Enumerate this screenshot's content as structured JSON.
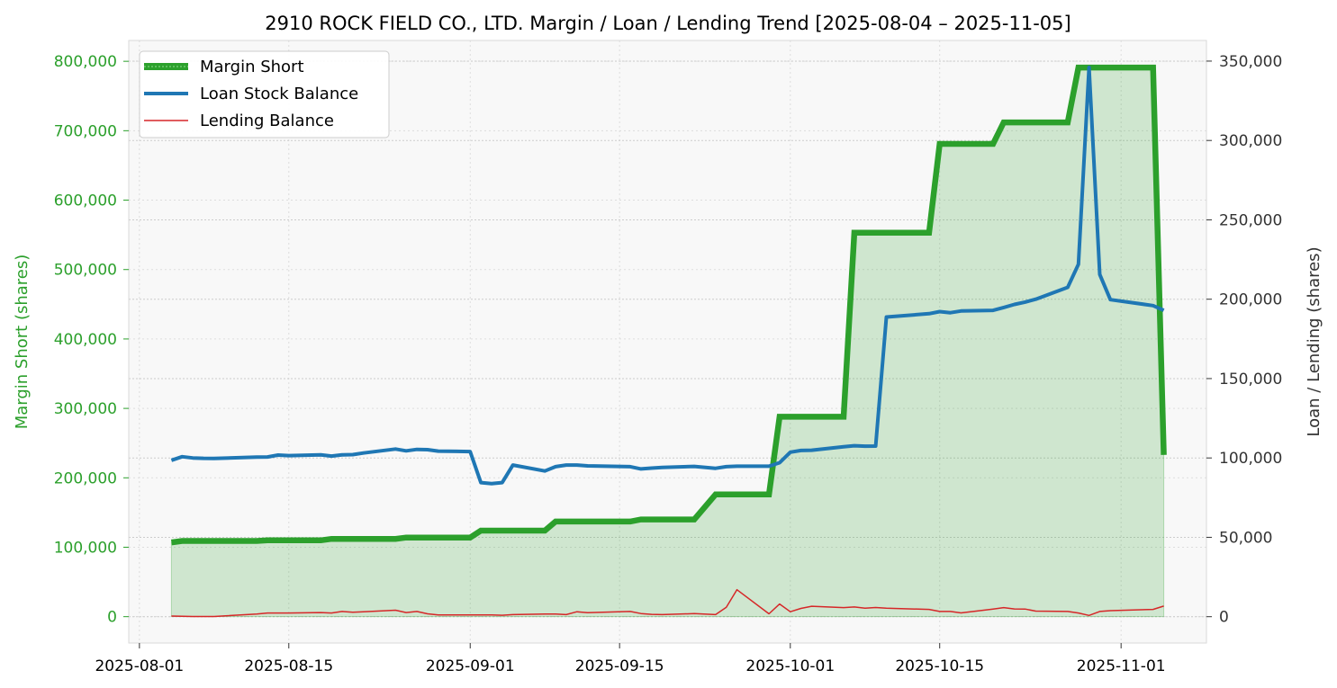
{
  "chart_data": {
    "type": "line",
    "title": "2910 ROCK FIELD CO., LTD. Margin / Loan / Lending Trend [2025-08-04 – 2025-11-05]",
    "xlabel": "",
    "ylabel_left": "Margin Short (shares)",
    "ylabel_right": "Loan / Lending (shares)",
    "x_range": [
      "2025-07-31",
      "2025-11-09"
    ],
    "ylim_left": [
      -38000,
      830000
    ],
    "ylim_right": [
      -16600,
      363000
    ],
    "x_ticks": [
      {
        "date": "2025-08-01",
        "label": "2025-08-01"
      },
      {
        "date": "2025-08-15",
        "label": "2025-08-15"
      },
      {
        "date": "2025-09-01",
        "label": "2025-09-01"
      },
      {
        "date": "2025-09-15",
        "label": "2025-09-15"
      },
      {
        "date": "2025-10-01",
        "label": "2025-10-01"
      },
      {
        "date": "2025-10-15",
        "label": "2025-10-15"
      },
      {
        "date": "2025-11-01",
        "label": "2025-11-01"
      }
    ],
    "y_ticks_left": [
      {
        "value": 0,
        "label": "0"
      },
      {
        "value": 100000,
        "label": "100,000"
      },
      {
        "value": 200000,
        "label": "200,000"
      },
      {
        "value": 300000,
        "label": "300,000"
      },
      {
        "value": 400000,
        "label": "400,000"
      },
      {
        "value": 500000,
        "label": "500,000"
      },
      {
        "value": 600000,
        "label": "600,000"
      },
      {
        "value": 700000,
        "label": "700,000"
      },
      {
        "value": 800000,
        "label": "800,000"
      }
    ],
    "y_ticks_right": [
      {
        "value": 0,
        "label": "0"
      },
      {
        "value": 50000,
        "label": "50,000"
      },
      {
        "value": 100000,
        "label": "100,000"
      },
      {
        "value": 150000,
        "label": "150,000"
      },
      {
        "value": 200000,
        "label": "200,000"
      },
      {
        "value": 250000,
        "label": "250,000"
      },
      {
        "value": 300000,
        "label": "300,000"
      },
      {
        "value": 350000,
        "label": "350,000"
      }
    ],
    "grid": true,
    "legend_position": "top-left",
    "series": [
      {
        "name": "Margin Short",
        "axis": "left",
        "color": "#2ca02c",
        "style": "thick-fill",
        "points": [
          [
            "2025-08-04",
            107000
          ],
          [
            "2025-08-05",
            109000
          ],
          [
            "2025-08-06",
            109000
          ],
          [
            "2025-08-07",
            109000
          ],
          [
            "2025-08-08",
            109000
          ],
          [
            "2025-08-12",
            109000
          ],
          [
            "2025-08-13",
            110000
          ],
          [
            "2025-08-14",
            110000
          ],
          [
            "2025-08-15",
            110000
          ],
          [
            "2025-08-18",
            110000
          ],
          [
            "2025-08-19",
            112000
          ],
          [
            "2025-08-20",
            112000
          ],
          [
            "2025-08-21",
            112000
          ],
          [
            "2025-08-22",
            112000
          ],
          [
            "2025-08-25",
            112000
          ],
          [
            "2025-08-26",
            114000
          ],
          [
            "2025-08-27",
            114000
          ],
          [
            "2025-08-28",
            114000
          ],
          [
            "2025-08-29",
            114000
          ],
          [
            "2025-09-01",
            114000
          ],
          [
            "2025-09-02",
            124000
          ],
          [
            "2025-09-03",
            124000
          ],
          [
            "2025-09-04",
            124000
          ],
          [
            "2025-09-05",
            124000
          ],
          [
            "2025-09-08",
            124000
          ],
          [
            "2025-09-09",
            137000
          ],
          [
            "2025-09-10",
            137000
          ],
          [
            "2025-09-11",
            137000
          ],
          [
            "2025-09-12",
            137000
          ],
          [
            "2025-09-16",
            137000
          ],
          [
            "2025-09-17",
            140000
          ],
          [
            "2025-09-18",
            140000
          ],
          [
            "2025-09-19",
            140000
          ],
          [
            "2025-09-22",
            140000
          ],
          [
            "2025-09-24",
            176000
          ],
          [
            "2025-09-25",
            176000
          ],
          [
            "2025-09-26",
            176000
          ],
          [
            "2025-09-29",
            176000
          ],
          [
            "2025-09-30",
            288000
          ],
          [
            "2025-10-01",
            288000
          ],
          [
            "2025-10-02",
            288000
          ],
          [
            "2025-10-03",
            288000
          ],
          [
            "2025-10-06",
            288000
          ],
          [
            "2025-10-07",
            553000
          ],
          [
            "2025-10-08",
            553000
          ],
          [
            "2025-10-09",
            553000
          ],
          [
            "2025-10-10",
            553000
          ],
          [
            "2025-10-14",
            553000
          ],
          [
            "2025-10-15",
            681000
          ],
          [
            "2025-10-16",
            681000
          ],
          [
            "2025-10-17",
            681000
          ],
          [
            "2025-10-20",
            681000
          ],
          [
            "2025-10-21",
            712000
          ],
          [
            "2025-10-22",
            712000
          ],
          [
            "2025-10-23",
            712000
          ],
          [
            "2025-10-24",
            712000
          ],
          [
            "2025-10-27",
            712000
          ],
          [
            "2025-10-28",
            791000
          ],
          [
            "2025-10-29",
            791000
          ],
          [
            "2025-10-30",
            791000
          ],
          [
            "2025-10-31",
            791000
          ],
          [
            "2025-11-04",
            791000
          ],
          [
            "2025-11-05",
            233000
          ]
        ]
      },
      {
        "name": "Loan Stock Balance",
        "axis": "right",
        "color": "#1f77b4",
        "style": "line",
        "points": [
          [
            "2025-08-04",
            98500
          ],
          [
            "2025-08-05",
            100800
          ],
          [
            "2025-08-06",
            100000
          ],
          [
            "2025-08-07",
            99800
          ],
          [
            "2025-08-08",
            99700
          ],
          [
            "2025-08-12",
            100500
          ],
          [
            "2025-08-13",
            100600
          ],
          [
            "2025-08-14",
            101800
          ],
          [
            "2025-08-15",
            101500
          ],
          [
            "2025-08-18",
            101900
          ],
          [
            "2025-08-19",
            101200
          ],
          [
            "2025-08-20",
            101900
          ],
          [
            "2025-08-21",
            102100
          ],
          [
            "2025-08-22",
            103100
          ],
          [
            "2025-08-25",
            105600
          ],
          [
            "2025-08-26",
            104500
          ],
          [
            "2025-08-27",
            105400
          ],
          [
            "2025-08-28",
            105200
          ],
          [
            "2025-08-29",
            104300
          ],
          [
            "2025-09-01",
            104000
          ],
          [
            "2025-09-02",
            84500
          ],
          [
            "2025-09-03",
            83800
          ],
          [
            "2025-09-04",
            84500
          ],
          [
            "2025-09-05",
            95500
          ],
          [
            "2025-09-08",
            91800
          ],
          [
            "2025-09-09",
            94500
          ],
          [
            "2025-09-10",
            95500
          ],
          [
            "2025-09-11",
            95500
          ],
          [
            "2025-09-12",
            95000
          ],
          [
            "2025-09-16",
            94500
          ],
          [
            "2025-09-17",
            93100
          ],
          [
            "2025-09-18",
            93600
          ],
          [
            "2025-09-19",
            94000
          ],
          [
            "2025-09-22",
            94700
          ],
          [
            "2025-09-24",
            93500
          ],
          [
            "2025-09-25",
            94500
          ],
          [
            "2025-09-26",
            94800
          ],
          [
            "2025-09-29",
            94800
          ],
          [
            "2025-09-30",
            97000
          ],
          [
            "2025-10-01",
            103600
          ],
          [
            "2025-10-02",
            104700
          ],
          [
            "2025-10-03",
            104900
          ],
          [
            "2025-10-06",
            107000
          ],
          [
            "2025-10-07",
            107700
          ],
          [
            "2025-10-08",
            107400
          ],
          [
            "2025-10-09",
            107500
          ],
          [
            "2025-10-10",
            188800
          ],
          [
            "2025-10-14",
            190900
          ],
          [
            "2025-10-15",
            192200
          ],
          [
            "2025-10-16",
            191500
          ],
          [
            "2025-10-17",
            192600
          ],
          [
            "2025-10-20",
            193000
          ],
          [
            "2025-10-21",
            194800
          ],
          [
            "2025-10-22",
            196700
          ],
          [
            "2025-10-23",
            198200
          ],
          [
            "2025-10-24",
            200000
          ],
          [
            "2025-10-27",
            207500
          ],
          [
            "2025-10-28",
            222000
          ],
          [
            "2025-10-29",
            346000
          ],
          [
            "2025-10-30",
            215600
          ],
          [
            "2025-10-31",
            199700
          ],
          [
            "2025-11-04",
            196000
          ],
          [
            "2025-11-05",
            193000
          ]
        ]
      },
      {
        "name": "Lending Balance",
        "axis": "right",
        "color": "#d62728",
        "style": "thin-line",
        "points": [
          [
            "2025-08-04",
            400
          ],
          [
            "2025-08-05",
            200
          ],
          [
            "2025-08-06",
            100
          ],
          [
            "2025-08-07",
            100
          ],
          [
            "2025-08-08",
            100
          ],
          [
            "2025-08-12",
            1700
          ],
          [
            "2025-08-13",
            2300
          ],
          [
            "2025-08-14",
            2300
          ],
          [
            "2025-08-15",
            2300
          ],
          [
            "2025-08-18",
            2600
          ],
          [
            "2025-08-19",
            2300
          ],
          [
            "2025-08-20",
            3300
          ],
          [
            "2025-08-21",
            2800
          ],
          [
            "2025-08-22",
            3100
          ],
          [
            "2025-08-25",
            4100
          ],
          [
            "2025-08-26",
            2600
          ],
          [
            "2025-08-27",
            3300
          ],
          [
            "2025-08-28",
            1800
          ],
          [
            "2025-08-29",
            1100
          ],
          [
            "2025-09-01",
            1100
          ],
          [
            "2025-09-02",
            1100
          ],
          [
            "2025-09-03",
            1100
          ],
          [
            "2025-09-04",
            900
          ],
          [
            "2025-09-05",
            1300
          ],
          [
            "2025-09-08",
            1700
          ],
          [
            "2025-09-09",
            1700
          ],
          [
            "2025-09-10",
            1300
          ],
          [
            "2025-09-11",
            3100
          ],
          [
            "2025-09-12",
            2500
          ],
          [
            "2025-09-16",
            3300
          ],
          [
            "2025-09-17",
            2000
          ],
          [
            "2025-09-18",
            1500
          ],
          [
            "2025-09-19",
            1300
          ],
          [
            "2025-09-22",
            1900
          ],
          [
            "2025-09-24",
            1300
          ],
          [
            "2025-09-25",
            5900
          ],
          [
            "2025-09-26",
            17000
          ],
          [
            "2025-09-29",
            1800
          ],
          [
            "2025-09-30",
            8000
          ],
          [
            "2025-10-01",
            3100
          ],
          [
            "2025-10-02",
            5200
          ],
          [
            "2025-10-03",
            6600
          ],
          [
            "2025-10-06",
            5700
          ],
          [
            "2025-10-07",
            6100
          ],
          [
            "2025-10-08",
            5400
          ],
          [
            "2025-10-09",
            5800
          ],
          [
            "2025-10-10",
            5300
          ],
          [
            "2025-10-14",
            4600
          ],
          [
            "2025-10-15",
            3300
          ],
          [
            "2025-10-16",
            3300
          ],
          [
            "2025-10-17",
            2400
          ],
          [
            "2025-10-20",
            4800
          ],
          [
            "2025-10-21",
            5700
          ],
          [
            "2025-10-22",
            4900
          ],
          [
            "2025-10-23",
            4800
          ],
          [
            "2025-10-24",
            3500
          ],
          [
            "2025-10-27",
            3300
          ],
          [
            "2025-10-28",
            2300
          ],
          [
            "2025-10-29",
            800
          ],
          [
            "2025-10-30",
            3300
          ],
          [
            "2025-10-31",
            3800
          ],
          [
            "2025-11-04",
            4600
          ],
          [
            "2025-11-05",
            6700
          ]
        ]
      }
    ]
  }
}
